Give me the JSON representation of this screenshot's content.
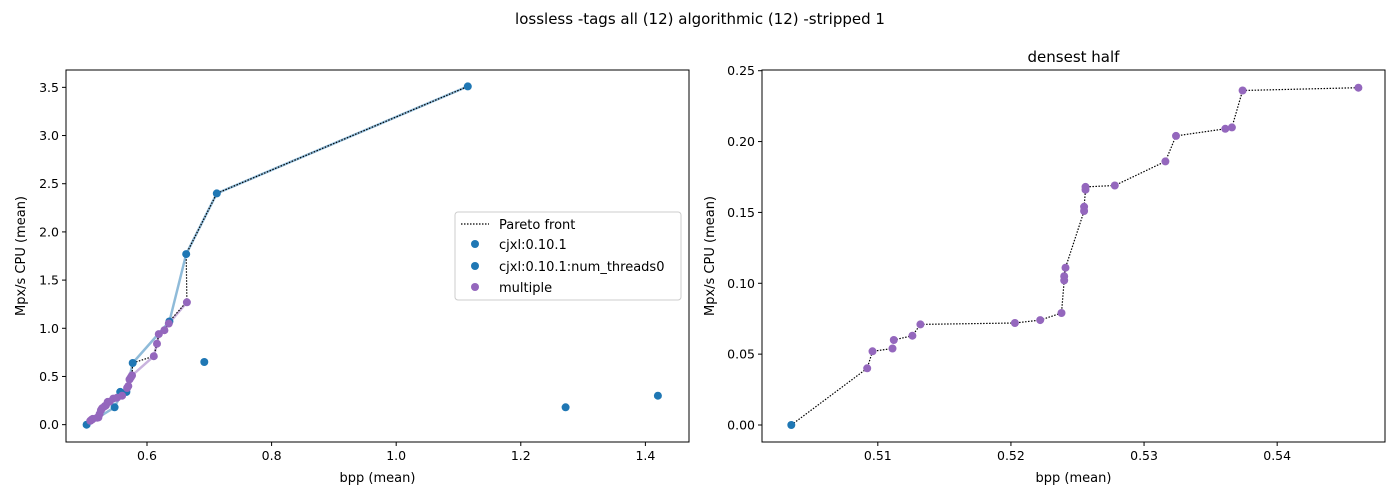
{
  "suptitle": "lossless -tags all (12) algorithmic (12) -stripped 1",
  "colors": {
    "blue": "#1f77b4",
    "purple": "#9467bd",
    "front": "#000000"
  },
  "legend": {
    "placement": "center-right",
    "entries": [
      {
        "label": "Pareto front",
        "kind": "line"
      },
      {
        "label": "cjxl:0.10.1",
        "kind": "marker",
        "color": "#1f77b4"
      },
      {
        "label": "cjxl:0.10.1:num_threads0",
        "kind": "marker",
        "color": "#1f77b4"
      },
      {
        "label": "multiple",
        "kind": "marker",
        "color": "#9467bd"
      }
    ]
  },
  "chart_data": [
    {
      "type": "scatter",
      "title": "",
      "xlabel": "bpp (mean)",
      "ylabel": "Mpx/s CPU (mean)",
      "xlim": [
        0.47,
        1.47
      ],
      "ylim": [
        -0.18,
        3.68
      ],
      "xticks": [
        0.6,
        0.8,
        1.0,
        1.2,
        1.4
      ],
      "xtick_labels": [
        "0.6",
        "0.8",
        "1.0",
        "1.2",
        "1.4"
      ],
      "yticks": [
        0.0,
        0.5,
        1.0,
        1.5,
        2.0,
        2.5,
        3.0,
        3.5
      ],
      "ytick_labels": [
        "0.0",
        "0.5",
        "1.0",
        "1.5",
        "2.0",
        "2.5",
        "3.0",
        "3.5"
      ],
      "series": [
        {
          "color": "#1f77b4",
          "x": [
            0.503,
            0.548,
            0.557,
            0.567,
            0.577,
            0.636,
            0.663,
            0.712,
            1.115,
            0.692,
            1.272,
            1.42
          ],
          "y": [
            0.0,
            0.18,
            0.34,
            0.34,
            0.64,
            1.07,
            1.77,
            2.4,
            3.51,
            0.65,
            0.18,
            0.3
          ]
        },
        {
          "color": "#9467bd",
          "x": [
            0.509,
            0.511,
            0.512,
            0.513,
            0.52,
            0.522,
            0.524,
            0.526,
            0.528,
            0.532,
            0.534,
            0.537,
            0.54,
            0.546,
            0.552,
            0.56,
            0.568,
            0.57,
            0.572,
            0.574,
            0.576,
            0.611,
            0.616,
            0.619,
            0.628,
            0.635,
            0.664
          ],
          "y": [
            0.04,
            0.05,
            0.055,
            0.06,
            0.072,
            0.075,
            0.11,
            0.15,
            0.17,
            0.19,
            0.2,
            0.236,
            0.238,
            0.27,
            0.28,
            0.3,
            0.38,
            0.4,
            0.47,
            0.49,
            0.51,
            0.71,
            0.84,
            0.94,
            0.98,
            1.05,
            1.27
          ]
        }
      ],
      "lines": [
        {
          "color": "#1f77b4",
          "x": [
            0.503,
            0.548,
            0.557,
            0.567,
            0.577,
            0.636,
            0.663,
            0.712,
            1.115
          ],
          "y": [
            0.0,
            0.18,
            0.3,
            0.34,
            0.64,
            1.07,
            1.77,
            2.4,
            3.51
          ]
        },
        {
          "color": "#9467bd",
          "x": [
            0.509,
            0.513,
            0.522,
            0.528,
            0.537,
            0.546,
            0.56,
            0.57,
            0.576,
            0.611,
            0.616,
            0.619,
            0.628,
            0.635,
            0.664
          ],
          "y": [
            0.04,
            0.06,
            0.08,
            0.17,
            0.22,
            0.27,
            0.3,
            0.4,
            0.51,
            0.71,
            0.84,
            0.94,
            0.98,
            1.05,
            1.27
          ]
        }
      ],
      "pareto_front": {
        "x": [
          0.503,
          0.509,
          0.513,
          0.522,
          0.528,
          0.537,
          0.546,
          0.552,
          0.56,
          0.568,
          0.57,
          0.576,
          0.577,
          0.611,
          0.616,
          0.619,
          0.628,
          0.636,
          0.663,
          0.664,
          0.663,
          0.712,
          1.115
        ],
        "y": [
          0.0,
          0.04,
          0.07,
          0.08,
          0.17,
          0.22,
          0.27,
          0.28,
          0.3,
          0.38,
          0.4,
          0.51,
          0.64,
          0.71,
          0.84,
          0.94,
          0.98,
          1.07,
          1.27,
          1.27,
          1.77,
          2.4,
          3.51
        ]
      }
    },
    {
      "type": "scatter",
      "title": "densest half",
      "xlabel": "bpp (mean)",
      "ylabel": "Mpx/s CPU (mean)",
      "xlim": [
        0.5013,
        0.5481
      ],
      "ylim": [
        -0.012,
        0.2505
      ],
      "xticks": [
        0.51,
        0.52,
        0.53,
        0.54
      ],
      "xtick_labels": [
        "0.51",
        "0.52",
        "0.53",
        "0.54"
      ],
      "yticks": [
        0.0,
        0.05,
        0.1,
        0.15,
        0.2,
        0.25
      ],
      "ytick_labels": [
        "0.00",
        "0.05",
        "0.10",
        "0.15",
        "0.20",
        "0.25"
      ],
      "series": [
        {
          "color": "#1f77b4",
          "x": [
            0.5035
          ],
          "y": [
            0.0
          ]
        },
        {
          "color": "#9467bd",
          "x": [
            0.5092,
            0.5096,
            0.5111,
            0.5112,
            0.5126,
            0.5132,
            0.5203,
            0.5222,
            0.5238,
            0.524,
            0.524,
            0.5241,
            0.5255,
            0.5255,
            0.5256,
            0.5256,
            0.5278,
            0.5316,
            0.5324,
            0.5361,
            0.5366,
            0.5374,
            0.5461
          ],
          "y": [
            0.04,
            0.052,
            0.054,
            0.06,
            0.063,
            0.071,
            0.072,
            0.074,
            0.079,
            0.102,
            0.105,
            0.111,
            0.151,
            0.154,
            0.166,
            0.168,
            0.169,
            0.186,
            0.204,
            0.209,
            0.21,
            0.236,
            0.238
          ]
        }
      ],
      "lines": [],
      "pareto_front": {
        "x": [
          0.5035,
          0.5092,
          0.5096,
          0.5111,
          0.5112,
          0.5126,
          0.5132,
          0.5203,
          0.5222,
          0.5238,
          0.524,
          0.524,
          0.5241,
          0.5255,
          0.5255,
          0.5256,
          0.5256,
          0.5278,
          0.5316,
          0.5324,
          0.5361,
          0.5366,
          0.5374,
          0.5461
        ],
        "y": [
          0.0,
          0.04,
          0.052,
          0.054,
          0.06,
          0.063,
          0.071,
          0.072,
          0.074,
          0.079,
          0.102,
          0.105,
          0.111,
          0.151,
          0.154,
          0.166,
          0.168,
          0.169,
          0.186,
          0.204,
          0.209,
          0.21,
          0.236,
          0.238
        ]
      }
    }
  ]
}
